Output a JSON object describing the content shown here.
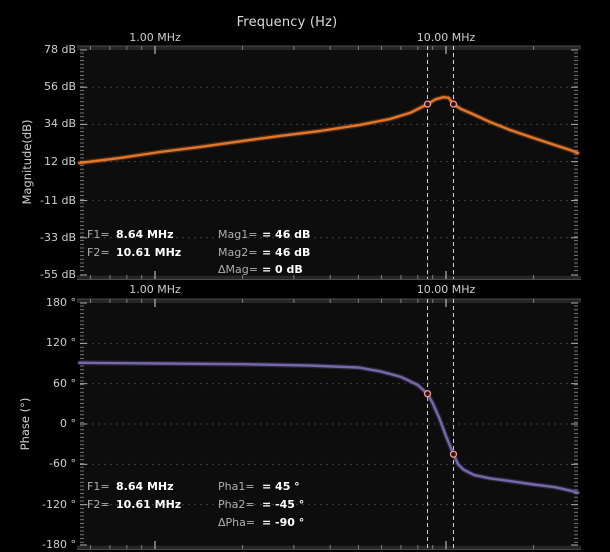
{
  "title": "Frequency (Hz)",
  "colors": {
    "background": "#000000",
    "plot_background": "#0d0d0d",
    "grid": "#3f3f3f",
    "cursor_line": "#d5d5d5",
    "marker_ring": "#f09a93",
    "magnitude_trace": "#e4762a",
    "phase_trace": "#7668ad"
  },
  "readouts": {
    "magnitude": {
      "f1": {
        "label": "F1=",
        "value": "8.64 MHz"
      },
      "f2": {
        "label": "F2=",
        "value": "10.61 MHz"
      },
      "m1": {
        "label": "Mag1=",
        "value": "= 46 dB"
      },
      "m2": {
        "label": "Mag2=",
        "value": "= 46 dB"
      },
      "dm": {
        "label": "ΔMag=",
        "value": "= 0 dB"
      }
    },
    "phase": {
      "f1": {
        "label": "F1=",
        "value": "8.64 MHz"
      },
      "f2": {
        "label": "F2=",
        "value": "10.61 MHz"
      },
      "p1": {
        "label": "Pha1=",
        "value": "= 45 °"
      },
      "p2": {
        "label": "Pha2=",
        "value": "= -45 °"
      },
      "dp": {
        "label": "ΔPha=",
        "value": "= -90 °"
      }
    }
  },
  "chart_data": [
    {
      "type": "line",
      "name": "magnitude-vs-frequency",
      "title": "Frequency (Hz)",
      "ylabel": "Magnitude(dB)",
      "x_scale": "log",
      "x_unit": "MHz",
      "x_range": [
        0.55,
        28.4
      ],
      "x_ticks": [
        {
          "f": 1,
          "label": "1.00 MHz"
        },
        {
          "f": 10,
          "label": "10.00 MHz"
        }
      ],
      "x_minor_ticks": [
        0.6,
        0.7,
        0.8,
        0.9,
        2,
        3,
        4,
        5,
        6,
        7,
        8,
        9,
        20
      ],
      "y_range": [
        -55,
        78
      ],
      "y_ticks": [
        {
          "v": 78,
          "label": "78 dB"
        },
        {
          "v": 56,
          "label": "56 dB"
        },
        {
          "v": 34,
          "label": "34 dB"
        },
        {
          "v": 12,
          "label": "12 dB"
        },
        {
          "v": -11,
          "label": "-11 dB"
        },
        {
          "v": -33,
          "label": "-33 dB"
        },
        {
          "v": -55,
          "label": "-55 dB"
        }
      ],
      "series_color": "#e4762a",
      "grid": true,
      "points": [
        [
          0.55,
          11.2
        ],
        [
          0.76,
          14.2
        ],
        [
          1.04,
          17.7
        ],
        [
          1.43,
          20.7
        ],
        [
          2.0,
          24.2
        ],
        [
          2.69,
          27.2
        ],
        [
          3.69,
          30.1
        ],
        [
          5.06,
          33.7
        ],
        [
          6.42,
          37.2
        ],
        [
          7.52,
          40.8
        ],
        [
          8.14,
          43.7
        ],
        [
          8.64,
          46
        ],
        [
          9.2,
          48.8
        ],
        [
          9.8,
          50.1
        ],
        [
          10.2,
          49.8
        ],
        [
          10.61,
          46
        ],
        [
          11.3,
          43
        ],
        [
          12.1,
          40.8
        ],
        [
          14.2,
          35.4
        ],
        [
          16.6,
          30.7
        ],
        [
          20,
          26
        ],
        [
          23.7,
          21.8
        ],
        [
          26.7,
          18.9
        ],
        [
          28.4,
          17.1
        ]
      ],
      "cursors": [
        {
          "name": "F1",
          "f": 8.64,
          "v": 46
        },
        {
          "name": "F2",
          "f": 10.61,
          "v": 46
        }
      ]
    },
    {
      "type": "line",
      "name": "phase-vs-frequency",
      "ylabel": "Phase (°)",
      "x_scale": "log",
      "x_unit": "MHz",
      "x_range": [
        0.55,
        28.4
      ],
      "x_ticks": [
        {
          "f": 1,
          "label": "1.00 MHz"
        },
        {
          "f": 10,
          "label": "10.00 MHz"
        }
      ],
      "x_minor_ticks": [
        0.6,
        0.7,
        0.8,
        0.9,
        2,
        3,
        4,
        5,
        6,
        7,
        8,
        9,
        20
      ],
      "y_range": [
        -180,
        180
      ],
      "y_ticks": [
        {
          "v": 180,
          "label": "180 °"
        },
        {
          "v": 120,
          "label": "120 °"
        },
        {
          "v": 60,
          "label": "60 °"
        },
        {
          "v": 0,
          "label": "0 °"
        },
        {
          "v": -60,
          "label": "-60 °"
        },
        {
          "v": -120,
          "label": "-120 °"
        },
        {
          "v": -180,
          "label": "-180 °"
        }
      ],
      "series_color": "#7668ad",
      "grid": true,
      "points": [
        [
          0.55,
          91
        ],
        [
          1.04,
          90
        ],
        [
          2.0,
          89
        ],
        [
          3.38,
          87
        ],
        [
          5.0,
          84
        ],
        [
          6.0,
          78
        ],
        [
          7.0,
          70
        ],
        [
          7.5,
          64
        ],
        [
          8.0,
          58
        ],
        [
          8.64,
          45
        ],
        [
          9.0,
          31
        ],
        [
          9.5,
          8
        ],
        [
          10.0,
          -18
        ],
        [
          10.61,
          -45
        ],
        [
          11.0,
          -60
        ],
        [
          11.5,
          -68
        ],
        [
          12.5,
          -76
        ],
        [
          14.2,
          -81
        ],
        [
          16.6,
          -85
        ],
        [
          20,
          -90
        ],
        [
          23.7,
          -94
        ],
        [
          26.7,
          -99
        ],
        [
          28.4,
          -102
        ]
      ],
      "cursors": [
        {
          "name": "F1",
          "f": 8.64,
          "v": 45
        },
        {
          "name": "F2",
          "f": 10.61,
          "v": -45
        }
      ]
    }
  ]
}
